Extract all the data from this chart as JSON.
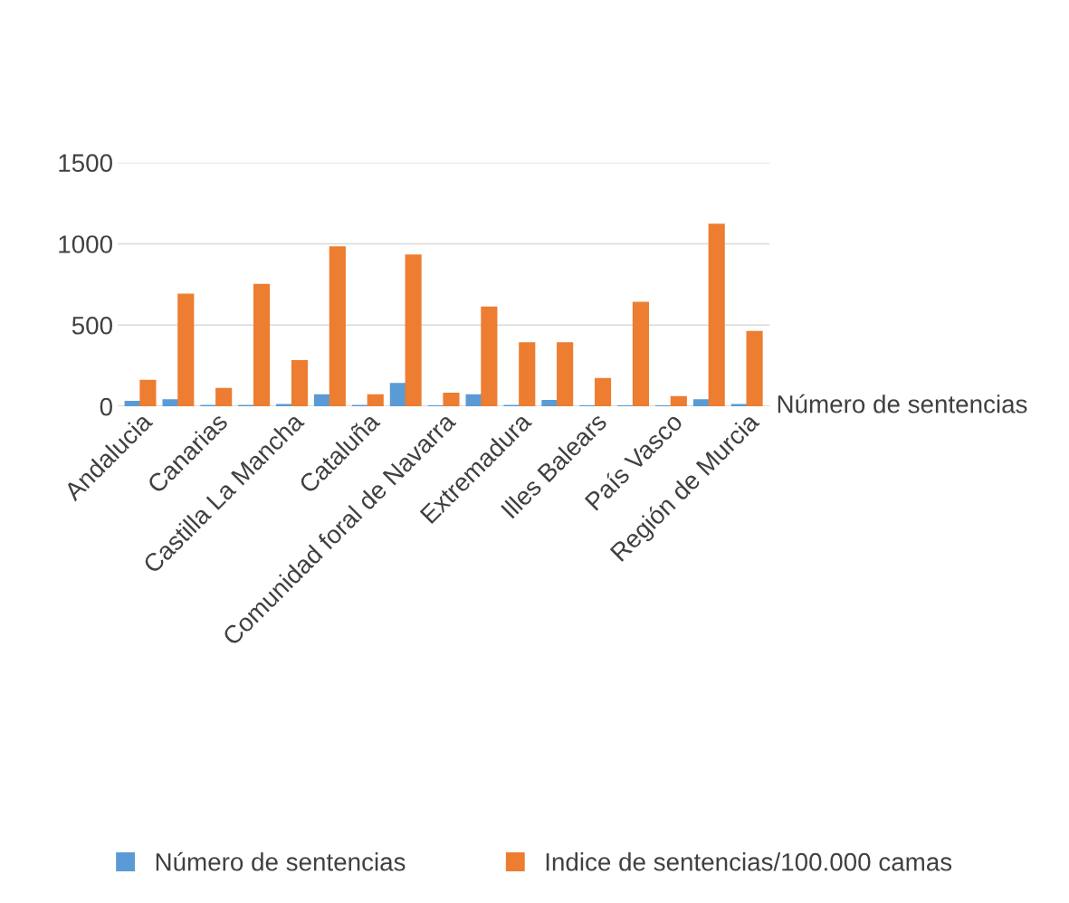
{
  "chart_data": {
    "type": "bar",
    "categories": [
      "Andalucia",
      null,
      "Canarias",
      null,
      "Castilla La Mancha",
      null,
      "Cataluña",
      null,
      "Comunidad foral de Navarra",
      null,
      "Extremadura",
      null,
      "Illes Balears",
      null,
      "País Vasco",
      null,
      "Región de Murcia"
    ],
    "series": [
      {
        "name": "Número de sentencias",
        "color": "#5b9bd5",
        "values": [
          30,
          40,
          5,
          5,
          10,
          70,
          5,
          140,
          3,
          70,
          5,
          35,
          3,
          3,
          3,
          40,
          10
        ]
      },
      {
        "name": "Indice de sentencias/100.000 camas",
        "color": "#ed7d31",
        "values": [
          160,
          690,
          110,
          750,
          280,
          980,
          70,
          930,
          80,
          610,
          390,
          390,
          170,
          640,
          60,
          1120,
          460
        ]
      }
    ],
    "ylim": [
      0,
      1500
    ],
    "yticks": [
      0,
      500,
      1000,
      1500
    ],
    "grid": "y",
    "legend": "bottom",
    "annotations": [
      "Número de sentencias"
    ]
  }
}
